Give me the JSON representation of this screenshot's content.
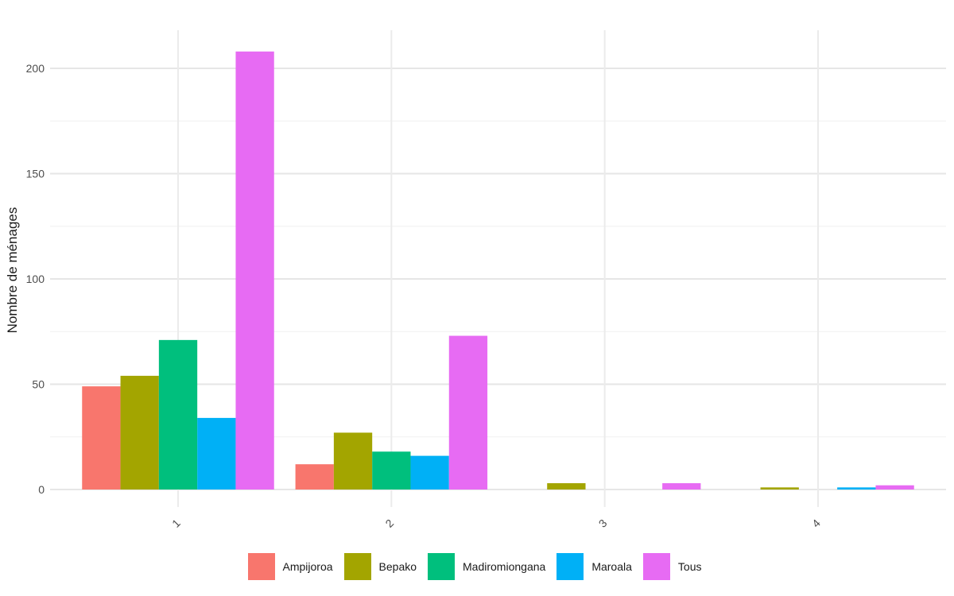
{
  "chart_data": {
    "type": "bar",
    "title": "",
    "xlabel": "",
    "ylabel": "Nombre de ménages",
    "categories": [
      "1",
      "2",
      "3",
      "4"
    ],
    "ylim": [
      -8,
      218
    ],
    "yticks": [
      0,
      50,
      100,
      150,
      200
    ],
    "grid": true,
    "legend_position": "bottom",
    "series": [
      {
        "name": "Ampijoroa",
        "color": "#F8766D",
        "values": [
          49,
          12,
          0,
          0
        ]
      },
      {
        "name": "Bepako",
        "color": "#A3A500",
        "values": [
          54,
          27,
          3,
          1
        ]
      },
      {
        "name": "Madiromiongana",
        "color": "#00BF7D",
        "values": [
          71,
          18,
          0,
          0
        ]
      },
      {
        "name": "Maroala",
        "color": "#00B0F6",
        "values": [
          34,
          16,
          0,
          1
        ]
      },
      {
        "name": "Tous",
        "color": "#E76BF3",
        "values": [
          208,
          73,
          3,
          2
        ]
      }
    ]
  }
}
